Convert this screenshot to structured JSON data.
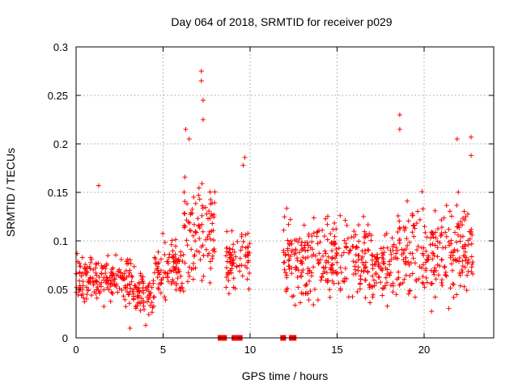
{
  "chart_data": {
    "type": "scatter",
    "title": "Day 064 of 2018, SRMTID for receiver p029",
    "xlabel": "GPS time / hours",
    "ylabel": "SRMTID / TECUs",
    "xlim": [
      0,
      24
    ],
    "ylim": [
      0,
      0.3
    ],
    "xticks": [
      0,
      5,
      10,
      15,
      20
    ],
    "xtick_labels": [
      "0",
      "5",
      "10",
      "15",
      "20"
    ],
    "yticks": [
      0,
      0.05,
      0.1,
      0.15,
      0.2,
      0.25,
      0.3
    ],
    "ytick_labels": [
      "0",
      "0.05",
      "0.1",
      "0.15",
      "0.2",
      "0.25",
      "0.3"
    ],
    "grid": true,
    "marker": "+",
    "color": "#ff0000",
    "data_gap_markers_at_zero": [
      8.3,
      8.5,
      9.1,
      9.4,
      11.9,
      12.4,
      12.5
    ],
    "series": [
      {
        "name": "p029",
        "segments": [
          {
            "x_start": 0.0,
            "x_end": 3.3,
            "mean": 0.06,
            "spread": 0.035
          },
          {
            "x_start": 3.3,
            "x_end": 4.5,
            "mean": 0.045,
            "spread": 0.03
          },
          {
            "x_start": 4.5,
            "x_end": 6.2,
            "mean": 0.07,
            "spread": 0.045
          },
          {
            "x_start": 6.2,
            "x_end": 8.0,
            "mean": 0.11,
            "spread": 0.075
          },
          {
            "x_start": 8.6,
            "x_end": 10.0,
            "mean": 0.08,
            "spread": 0.045
          },
          {
            "x_start": 11.9,
            "x_end": 17.0,
            "mean": 0.08,
            "spread": 0.06
          },
          {
            "x_start": 17.0,
            "x_end": 18.5,
            "mean": 0.07,
            "spread": 0.05
          },
          {
            "x_start": 18.5,
            "x_end": 22.8,
            "mean": 0.09,
            "spread": 0.07
          }
        ],
        "highlighted_points": [
          {
            "x": 7.2,
            "y": 0.275
          },
          {
            "x": 7.2,
            "y": 0.265
          },
          {
            "x": 7.3,
            "y": 0.245
          },
          {
            "x": 7.3,
            "y": 0.225
          },
          {
            "x": 6.3,
            "y": 0.215
          },
          {
            "x": 6.5,
            "y": 0.205
          },
          {
            "x": 18.6,
            "y": 0.23
          },
          {
            "x": 18.6,
            "y": 0.215
          },
          {
            "x": 21.9,
            "y": 0.205
          },
          {
            "x": 22.7,
            "y": 0.207
          },
          {
            "x": 22.7,
            "y": 0.188
          },
          {
            "x": 9.7,
            "y": 0.186
          },
          {
            "x": 9.6,
            "y": 0.178
          },
          {
            "x": 1.3,
            "y": 0.157
          },
          {
            "x": 4.0,
            "y": 0.013
          },
          {
            "x": 3.1,
            "y": 0.01
          }
        ]
      }
    ]
  }
}
